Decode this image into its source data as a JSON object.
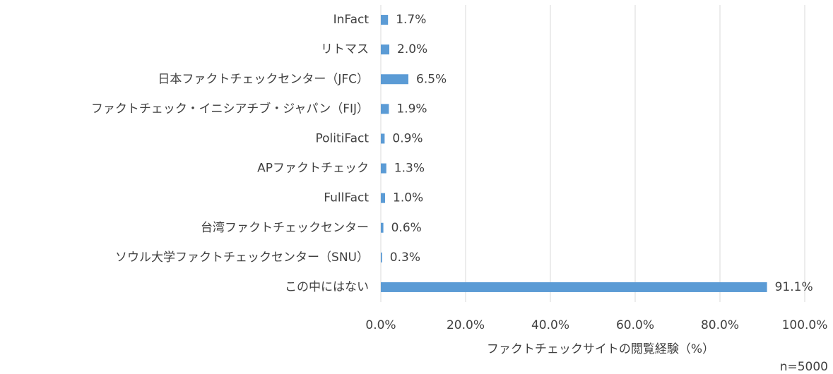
{
  "chart_data": {
    "type": "hbar",
    "categories": [
      "InFact",
      "リトマス",
      "日本ファクトチェックセンター（JFC）",
      "ファクトチェック・イニシアチブ・ジャパン（FIJ）",
      "PolitiFact",
      "APファクトチェック",
      "FullFact",
      "台湾ファクトチェックセンター",
      "ソウル大学ファクトチェックセンター（SNU）",
      "この中にはない"
    ],
    "values": [
      1.7,
      2.0,
      6.5,
      1.9,
      0.9,
      1.3,
      1.0,
      0.6,
      0.3,
      91.1
    ],
    "value_labels": [
      "1.7%",
      "2.0%",
      "6.5%",
      "1.9%",
      "0.9%",
      "1.3%",
      "1.0%",
      "0.6%",
      "0.3%",
      "91.1%"
    ],
    "color": "#5b9bd5",
    "xlim": [
      0,
      100
    ],
    "xticks": [
      {
        "value": 0,
        "label": "0.0%"
      },
      {
        "value": 20,
        "label": "20.0%"
      },
      {
        "value": 40,
        "label": "40.0%"
      },
      {
        "value": 60,
        "label": "60.0%"
      },
      {
        "value": 80,
        "label": "80.0%"
      },
      {
        "value": 100,
        "label": "100.0%"
      }
    ],
    "x_label": "ファクトチェックサイトの閲覧経験（%）",
    "annotation": "n=5000",
    "grid": true
  }
}
